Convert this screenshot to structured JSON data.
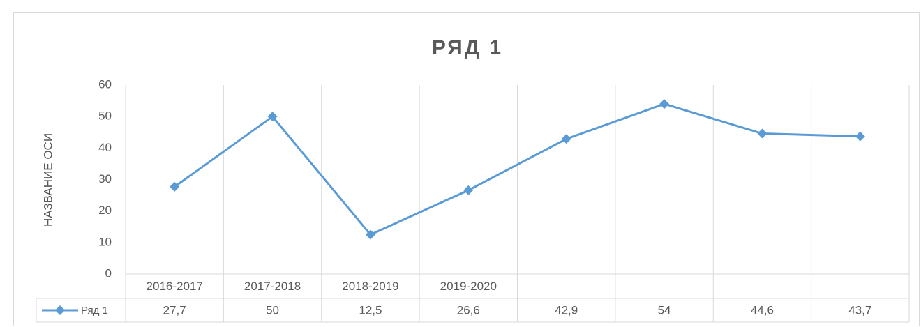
{
  "chart_data": {
    "type": "line",
    "title": "РЯД 1",
    "y_label": "НАЗВАНИЕ ОСИ",
    "categories": [
      "2016-2017",
      "2017-2018",
      "2018-2019",
      "2019-2020",
      null,
      null,
      null,
      null
    ],
    "series": [
      {
        "name": "Ряд 1",
        "color": "#5b9bd5",
        "values": [
          27.7,
          50,
          12.5,
          26.6,
          42.9,
          54,
          44.6,
          43.7
        ],
        "value_labels": [
          "27,7",
          "50",
          "12,5",
          "26,6",
          "42,9",
          "54",
          "44,6",
          "43,7"
        ]
      }
    ],
    "ylim": [
      0,
      60
    ],
    "yticks": [
      0,
      10,
      20,
      30,
      40,
      50,
      60
    ],
    "grid": "vertical"
  }
}
